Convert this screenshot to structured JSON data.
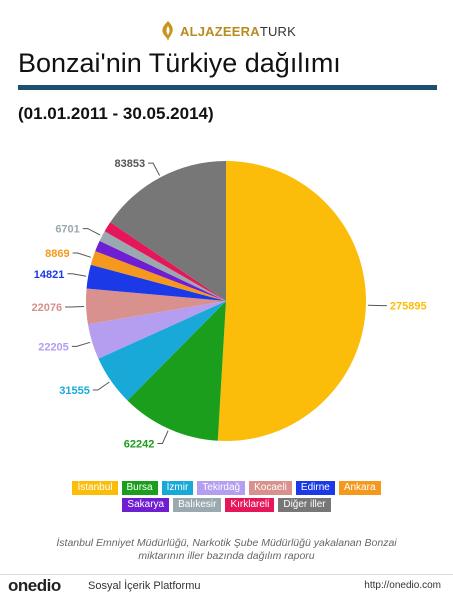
{
  "header": {
    "logo_main": "ALJAZEERA",
    "logo_suffix": "TURK",
    "title": "Bonzai'nin Türkiye dağılımı",
    "subtitle": "(01.01.2011 - 30.05.2014)"
  },
  "colors": {
    "title_rule": "#1d4f6e"
  },
  "chart_data": {
    "type": "pie",
    "categories": [
      "İstanbul",
      "Bursa",
      "İzmir",
      "Tekirdağ",
      "Kocaeli",
      "Edirne",
      "Ankara",
      "Sakarya",
      "Balıkesir",
      "Kırklareli",
      "Diğer iller"
    ],
    "values": [
      275895,
      62242,
      31555,
      22205,
      22076,
      14821,
      8869,
      6850,
      6701,
      6600,
      83853
    ],
    "labels": [
      "275895",
      "62242",
      "31555",
      "22205",
      "22076",
      "14821",
      "8869",
      "",
      "6701",
      "",
      "83853"
    ],
    "colors": [
      "#fbbd0a",
      "#1c9e1d",
      "#18a9d8",
      "#b59df0",
      "#d8918c",
      "#1b39e7",
      "#f5991e",
      "#6f1fd1",
      "#9aa9b0",
      "#e5175a",
      "#777777"
    ],
    "start_angle_deg": 0,
    "direction": "clockwise",
    "legend_position": "bottom"
  },
  "caption": {
    "line1": "İstanbul Emniyet Müdürlüğü, Narkotik Şube Müdürlüğü yakalanan Bonzai",
    "line2": "miktarının iller bazında dağılım raporu"
  },
  "footer": {
    "brand": "onedio",
    "tagline": "Sosyal İçerik Platformu",
    "site": "http://onedio.com"
  }
}
